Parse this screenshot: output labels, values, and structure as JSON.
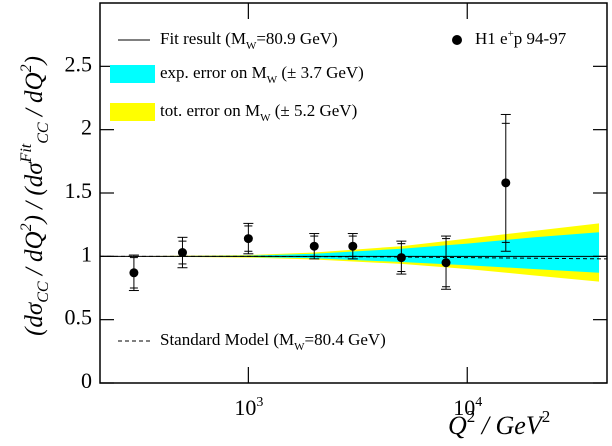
{
  "chart_data": {
    "type": "ratio",
    "x_label": [
      {
        "text": "Q",
        "style": "italic"
      },
      {
        "text": "2",
        "shift": "super"
      },
      {
        "text": "  / GeV",
        "style": "italic"
      },
      {
        "text": "2",
        "shift": "super"
      }
    ],
    "y_label": [
      {
        "text": "(d"
      },
      {
        "text": "σ"
      },
      {
        "text": "CC",
        "shift": "sub"
      },
      {
        "text": " / dQ"
      },
      {
        "text": "2",
        "shift": "super"
      },
      {
        "text": ") / (d"
      },
      {
        "text": "σ"
      },
      {
        "text": "Fit",
        "shift": "super"
      },
      {
        "text": "CC",
        "shift": "sub"
      },
      {
        "text": " / dQ"
      },
      {
        "text": "2",
        "shift": "super"
      },
      {
        "text": ")"
      }
    ],
    "xscale": "log",
    "xlim": [
      210,
      43500
    ],
    "xticks": [
      {
        "value": 1000,
        "label": [
          {
            "text": "10"
          },
          {
            "text": "3",
            "shift": "super"
          }
        ]
      },
      {
        "value": 10000,
        "label": [
          {
            "text": "10"
          },
          {
            "text": "4",
            "shift": "super"
          }
        ]
      }
    ],
    "ylim": [
      0,
      3
    ],
    "yticks": [
      0,
      0.5,
      1,
      1.5,
      2,
      2.5
    ],
    "series": [
      {
        "type": "line",
        "name": [
          {
            "text": "Fit result (M"
          },
          {
            "text": "W",
            "shift": "sub"
          },
          {
            "text": "=80.9 GeV)"
          }
        ],
        "color": "#000000",
        "x": [
          210,
          43500
        ],
        "values": [
          1,
          1
        ]
      },
      {
        "type": "points",
        "name": [
          {
            "text": "H1 e"
          },
          {
            "text": "+",
            "shift": "super"
          },
          {
            "text": "p 94-97"
          }
        ],
        "color": "#000000",
        "x": [
          300,
          500,
          1000,
          2000,
          3000,
          5000,
          8000,
          15000
        ],
        "values": [
          0.87,
          1.03,
          1.14,
          1.08,
          1.08,
          0.99,
          0.95,
          1.58
        ],
        "stat_errors": [
          0.12,
          0.09,
          0.1,
          0.08,
          0.08,
          0.11,
          0.19,
          0.47
        ],
        "total_errors": [
          0.14,
          0.12,
          0.12,
          0.1,
          0.1,
          0.13,
          0.21,
          0.54
        ]
      },
      {
        "type": "band",
        "name": [
          {
            "text": "exp. error on M"
          },
          {
            "text": "W",
            "shift": "sub"
          },
          {
            "text": " (± 3.7 GeV)"
          }
        ],
        "color": "#00ffff",
        "x": [
          260,
          1000,
          2000,
          5000,
          10000,
          20000,
          40000
        ],
        "upper": [
          1.0,
          1.005,
          1.02,
          1.06,
          1.1,
          1.15,
          1.19
        ],
        "lower": [
          1.0,
          0.995,
          0.985,
          0.955,
          0.93,
          0.9,
          0.87
        ]
      },
      {
        "type": "band",
        "name": [
          {
            "text": "tot. error on M"
          },
          {
            "text": "W",
            "shift": "sub"
          },
          {
            "text": " (± 5.2 GeV)"
          }
        ],
        "color": "#ffff00",
        "x": [
          260,
          1000,
          2000,
          5000,
          10000,
          20000,
          40000
        ],
        "upper": [
          1.0,
          1.01,
          1.03,
          1.08,
          1.14,
          1.2,
          1.26
        ],
        "lower": [
          1.0,
          0.99,
          0.975,
          0.94,
          0.9,
          0.85,
          0.8
        ]
      },
      {
        "type": "dashed",
        "name": [
          {
            "text": "Standard Model (M"
          },
          {
            "text": "W",
            "shift": "sub"
          },
          {
            "text": "=80.4 GeV)"
          }
        ],
        "color": "#000000",
        "x": [
          210,
          1000,
          2000,
          5000,
          10000,
          20000,
          43500
        ],
        "values": [
          1.0,
          1.0,
          0.998,
          0.995,
          0.99,
          0.985,
          0.98
        ]
      }
    ]
  }
}
